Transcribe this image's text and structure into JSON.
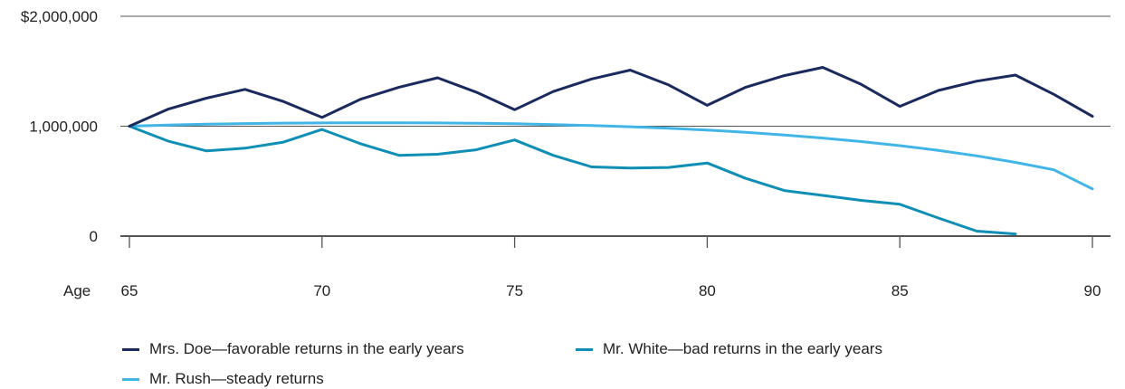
{
  "chart_data": {
    "type": "line",
    "x_axis_title": "Age",
    "x": [
      65,
      66,
      67,
      68,
      69,
      70,
      71,
      72,
      73,
      74,
      75,
      76,
      77,
      78,
      79,
      80,
      81,
      82,
      83,
      84,
      85,
      86,
      87,
      88,
      89,
      90
    ],
    "xticks": [
      65,
      70,
      75,
      80,
      85,
      90
    ],
    "xtick_labels": [
      "65",
      "70",
      "75",
      "80",
      "85",
      "90"
    ],
    "yticks": [
      0,
      1000000,
      2000000
    ],
    "ytick_labels": [
      "0",
      "1,000,000",
      "$2,000,000"
    ],
    "ylim": [
      0,
      2000000
    ],
    "xlim": [
      65,
      90
    ],
    "grid": "horizontal",
    "legend_position": "bottom",
    "series": [
      {
        "name": "Mrs. Doe—favorable returns in the early years",
        "color": "#1b2a5e",
        "values": [
          1000000,
          1155000,
          1255000,
          1335000,
          1225000,
          1080000,
          1245000,
          1355000,
          1440000,
          1310000,
          1150000,
          1315000,
          1430000,
          1510000,
          1375000,
          1190000,
          1355000,
          1460000,
          1535000,
          1380000,
          1180000,
          1325000,
          1410000,
          1465000,
          1290000,
          1090000
        ]
      },
      {
        "name": "Mr. White—bad returns in the early years",
        "color": "#0f8fb5",
        "values": [
          1000000,
          865000,
          775000,
          800000,
          855000,
          970000,
          840000,
          735000,
          745000,
          785000,
          875000,
          735000,
          630000,
          620000,
          625000,
          665000,
          525000,
          415000,
          370000,
          325000,
          290000,
          165000,
          45000,
          20000,
          null,
          null
        ]
      },
      {
        "name": "Mr. Rush—steady returns",
        "color": "#41b6e6",
        "values": [
          1000000,
          1010000,
          1018000,
          1024000,
          1028000,
          1030000,
          1031000,
          1031000,
          1030000,
          1027000,
          1022000,
          1015000,
          1006000,
          995000,
          982000,
          965000,
          945000,
          920000,
          892000,
          860000,
          823000,
          780000,
          730000,
          671000,
          603000,
          430000
        ]
      }
    ]
  }
}
